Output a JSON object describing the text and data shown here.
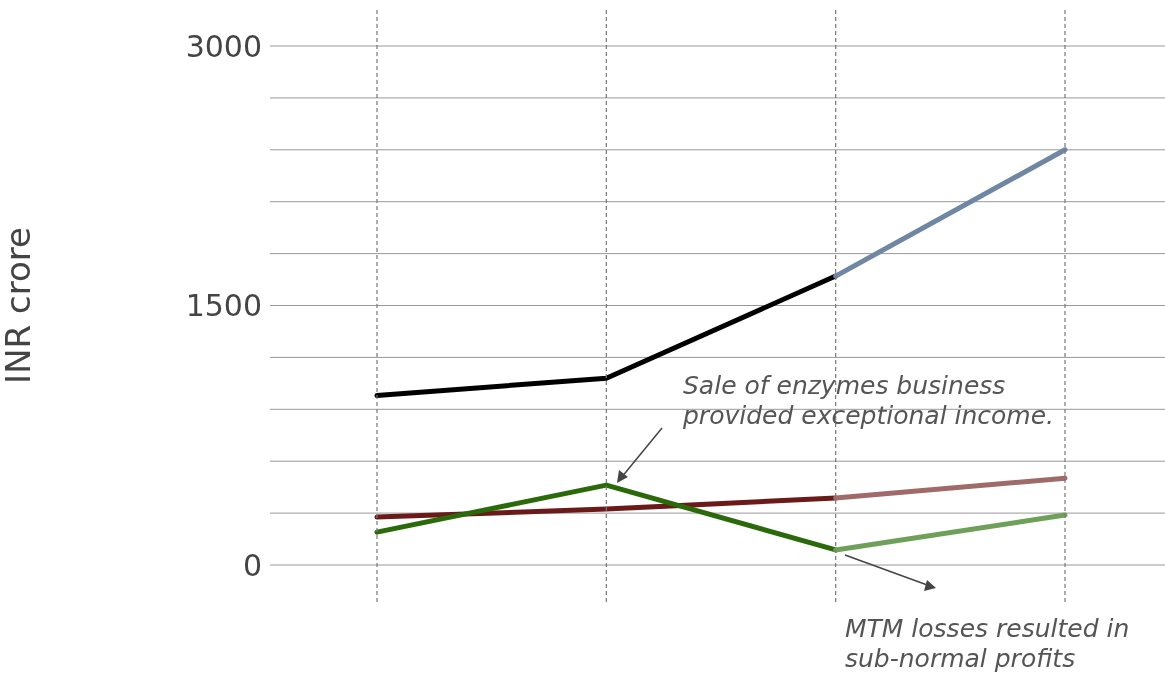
{
  "chart_data": {
    "type": "line",
    "categories": [
      null,
      null,
      null,
      null
    ],
    "series": [
      {
        "color": "#000000",
        "values": [
          980,
          1080,
          1670,
          null
        ]
      },
      {
        "color": "#6f87a3",
        "values": [
          null,
          null,
          1670,
          2400
        ]
      },
      {
        "color": "#6b1a1a",
        "values": [
          277,
          323,
          387,
          null
        ]
      },
      {
        "color": "#a06a6a",
        "values": [
          null,
          null,
          387,
          502
        ]
      },
      {
        "color": "#2a6a0a",
        "values": [
          190,
          462,
          87,
          null
        ]
      },
      {
        "color": "#6fa05a",
        "values": [
          null,
          null,
          87,
          289
        ]
      }
    ],
    "ylim": [
      0,
      3000
    ],
    "yticks": [
      0,
      {
        "value": 300,
        "label": null
      },
      {
        "value": 600,
        "label": null
      },
      {
        "value": 900,
        "label": null
      },
      {
        "value": 1200,
        "label": null
      },
      1500,
      {
        "value": 1800,
        "label": null
      },
      {
        "value": 2100,
        "label": null
      },
      {
        "value": 2400,
        "label": null
      },
      {
        "value": 2700,
        "label": null
      },
      3000
    ],
    "ylabel": "INR crore",
    "annotations": [
      "Sale of enzymes business provided exceptional income.",
      "MTM losses resulted in sub-normal profits"
    ],
    "grid": true,
    "tick_labels": "y"
  }
}
